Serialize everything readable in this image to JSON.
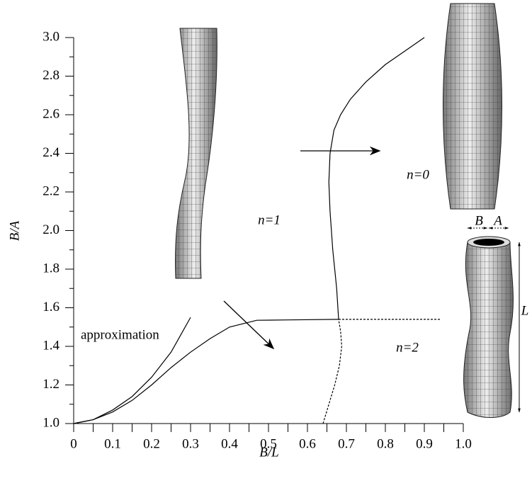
{
  "chart_data": {
    "type": "line",
    "xlabel": "B/L",
    "ylabel": "B/A",
    "xlim": [
      0,
      1
    ],
    "ylim": [
      1,
      3
    ],
    "xticks": [
      0,
      0.1,
      0.2,
      0.3,
      0.4,
      0.5,
      0.6,
      0.7,
      0.8,
      0.9,
      {
        "value": 1,
        "label": "1.0"
      }
    ],
    "yticks": [
      {
        "value": 1,
        "label": "1.0"
      },
      1.2,
      1.4,
      1.6,
      1.8,
      {
        "value": 2,
        "label": "2.0"
      },
      2.2,
      2.4,
      2.6,
      2.8,
      {
        "value": 3,
        "label": "3.0"
      }
    ],
    "grid": false,
    "series": [
      {
        "color": "#000000",
        "dash": false,
        "x": [
          0,
          0.05,
          0.1,
          0.15,
          0.2,
          0.25,
          0.3
        ],
        "values": [
          1,
          1.02,
          1.07,
          1.14,
          1.24,
          1.37,
          1.55
        ]
      },
      {
        "color": "#000000",
        "dash": false,
        "x": [
          0,
          0.05,
          0.1,
          0.15,
          0.2,
          0.25,
          0.3,
          0.35,
          0.4,
          0.47,
          0.55,
          0.68
        ],
        "values": [
          1,
          1.02,
          1.06,
          1.12,
          1.2,
          1.29,
          1.37,
          1.44,
          1.5,
          1.535,
          1.537,
          1.54
        ]
      },
      {
        "color": "#000000",
        "dash": true,
        "x": [
          0.68,
          0.8,
          0.94
        ],
        "values": [
          1.54,
          1.54,
          1.54
        ]
      },
      {
        "color": "#000000",
        "dash": false,
        "x": [
          0.68,
          0.675,
          0.665,
          0.658,
          0.655,
          0.658,
          0.668,
          0.685,
          0.71,
          0.75,
          0.8,
          0.85,
          0.9
        ],
        "values": [
          1.54,
          1.7,
          1.9,
          2.1,
          2.25,
          2.4,
          2.52,
          2.6,
          2.68,
          2.77,
          2.86,
          2.93,
          3.0
        ]
      },
      {
        "color": "#000000",
        "dash": true,
        "x": [
          0.64,
          0.655,
          0.67,
          0.682,
          0.688,
          0.685,
          0.68
        ],
        "values": [
          1.0,
          1.1,
          1.2,
          1.3,
          1.4,
          1.48,
          1.54
        ]
      }
    ],
    "annotations": [
      "approximation",
      "n=1",
      "n=0",
      "n=2",
      "B",
      "A",
      "L"
    ]
  }
}
